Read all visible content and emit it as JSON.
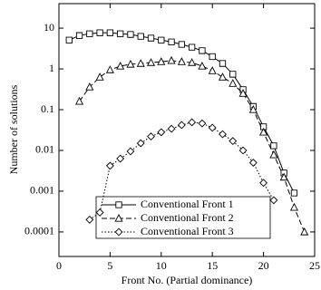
{
  "chart_data": {
    "type": "line",
    "xlabel": "Front No. (Partial dominance)",
    "ylabel": "Number of solutions",
    "xlim": [
      0,
      25
    ],
    "xticks": [
      0,
      5,
      10,
      15,
      20,
      25
    ],
    "ylim": [
      2.5e-05,
      40
    ],
    "yticks": [
      0.0001,
      0.001,
      0.01,
      0.1,
      1,
      10
    ],
    "yscale": "log",
    "legend": "lower center",
    "series": [
      {
        "name": "Conventional Front 1",
        "color": "#000000",
        "marker": "square",
        "line_style": "solid",
        "x": [
          1,
          2,
          3,
          4,
          5,
          6,
          7,
          8,
          9,
          10,
          11,
          12,
          13,
          14,
          15,
          16,
          17,
          18,
          19,
          20,
          21,
          22,
          23
        ],
        "values": [
          5.1,
          6.6,
          7.3,
          7.7,
          7.7,
          7.3,
          7,
          6.3,
          5.7,
          5.1,
          4.6,
          4,
          3.4,
          2.8,
          2.0,
          1.36,
          0.74,
          0.31,
          0.12,
          0.038,
          0.013,
          0.0028,
          0.0009
        ]
      },
      {
        "name": "Conventional Front 2",
        "color": "#000000",
        "marker": "triangle",
        "line_style": "dashed",
        "x": [
          2,
          3,
          4,
          5,
          6,
          7,
          8,
          9,
          10,
          11,
          12,
          13,
          14,
          15,
          16,
          17,
          18,
          19,
          20,
          21,
          22,
          23,
          24
        ],
        "values": [
          0.16,
          0.36,
          0.63,
          0.95,
          1.17,
          1.3,
          1.36,
          1.43,
          1.5,
          1.6,
          1.5,
          1.43,
          1.17,
          0.9,
          0.63,
          0.44,
          0.25,
          0.1,
          0.028,
          0.0078,
          0.0022,
          0.0004,
          0.0001
        ]
      },
      {
        "name": "Conventional Front 3",
        "color": "#000000",
        "marker": "diamond",
        "line_style": "dotted",
        "x": [
          3,
          4,
          5,
          6,
          7,
          8,
          9,
          10,
          11,
          12,
          13,
          14,
          15,
          16,
          17,
          18,
          19,
          20,
          21
        ],
        "values": [
          0.0002,
          0.0003,
          0.0042,
          0.0063,
          0.0095,
          0.015,
          0.022,
          0.028,
          0.034,
          0.042,
          0.049,
          0.046,
          0.036,
          0.025,
          0.017,
          0.01,
          0.005,
          0.0016,
          0.0006
        ]
      }
    ]
  }
}
